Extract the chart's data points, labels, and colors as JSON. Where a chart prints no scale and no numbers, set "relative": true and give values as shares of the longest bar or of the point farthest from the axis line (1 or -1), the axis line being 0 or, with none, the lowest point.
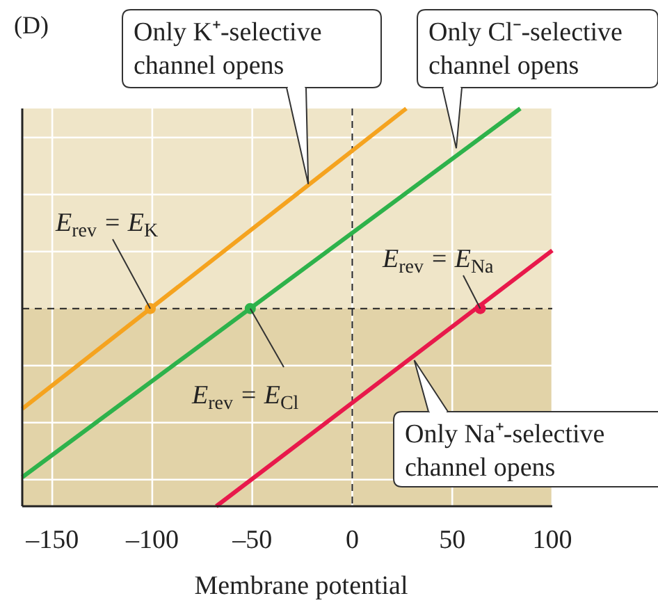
{
  "chart_data": {
    "type": "line",
    "relative": true,
    "xlabel": "Membrane potential",
    "xlim": [
      -165,
      100
    ],
    "xticks": [
      {
        "value": -150,
        "label": "–150"
      },
      {
        "value": -100,
        "label": "–100"
      },
      {
        "value": -50,
        "label": "–50"
      },
      0,
      50,
      100
    ],
    "grid": true,
    "line_style": "solid",
    "bands": [
      {
        "axis": "y",
        "from": 0,
        "to": 0.497,
        "color": "#e2d3a8"
      }
    ],
    "ref_lines": [
      {
        "axis": "y",
        "value": 0.497,
        "line_style": "dashed",
        "color": "#222222"
      },
      {
        "axis": "x",
        "value": 0,
        "line_style": "dashed",
        "color": "#222222"
      }
    ],
    "series": [
      {
        "color": "#f5a31f",
        "x": [
          -165,
          27
        ],
        "values": [
          0.245,
          1
        ]
      },
      {
        "color": "#2eb24b",
        "x": [
          -165,
          84
        ],
        "values": [
          0.073,
          1
        ]
      },
      {
        "color": "#e8194b",
        "x": [
          -68,
          100
        ],
        "values": [
          0,
          0.643
        ]
      },
      {
        "type": "scatter",
        "marker": "circle",
        "colors": [
          "#f5a31f",
          "#2eb24b",
          "#e8194b"
        ],
        "x": [
          -101,
          -51,
          64
        ],
        "values": [
          0.497,
          0.497,
          0.497
        ]
      }
    ],
    "annotations": [
      "(D)",
      {
        "text": "Only K⁺-selective\nchannel opens",
        "x": -22,
        "y": 0.81
      },
      {
        "text": "Only Cl⁻-selective\nchannel opens",
        "x": 52,
        "y": 0.9
      },
      {
        "text": "Only Na⁺-selective\nchannel opens",
        "x": 31,
        "y": 0.367
      },
      {
        "text": "E$_{rev}$ = E$_{K}$",
        "x": -101,
        "y": 0.497
      },
      {
        "text": "E$_{rev}$ = E$_{Cl}$",
        "x": -51,
        "y": 0.497
      },
      {
        "text": "E$_{rev}$ = E$_{Na}$",
        "x": 64,
        "y": 0.497
      }
    ]
  }
}
